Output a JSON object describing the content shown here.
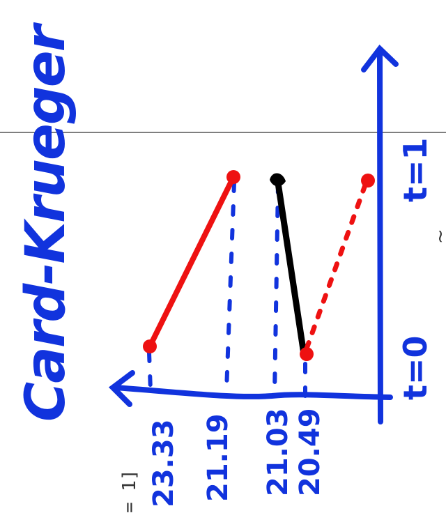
{
  "title": "Card-Krueger",
  "time_labels": {
    "t0": "t=0",
    "t1": "t=1"
  },
  "axis_values": [
    "23.33",
    "21.19",
    "21.03",
    "20.49"
  ],
  "edge_fragment": "= 1]",
  "edge_mark": "~",
  "colors": {
    "ink_blue": "#1133dd",
    "ink_red": "#ee1111",
    "ink_black": "#000000",
    "rule_line": "#555555"
  }
}
